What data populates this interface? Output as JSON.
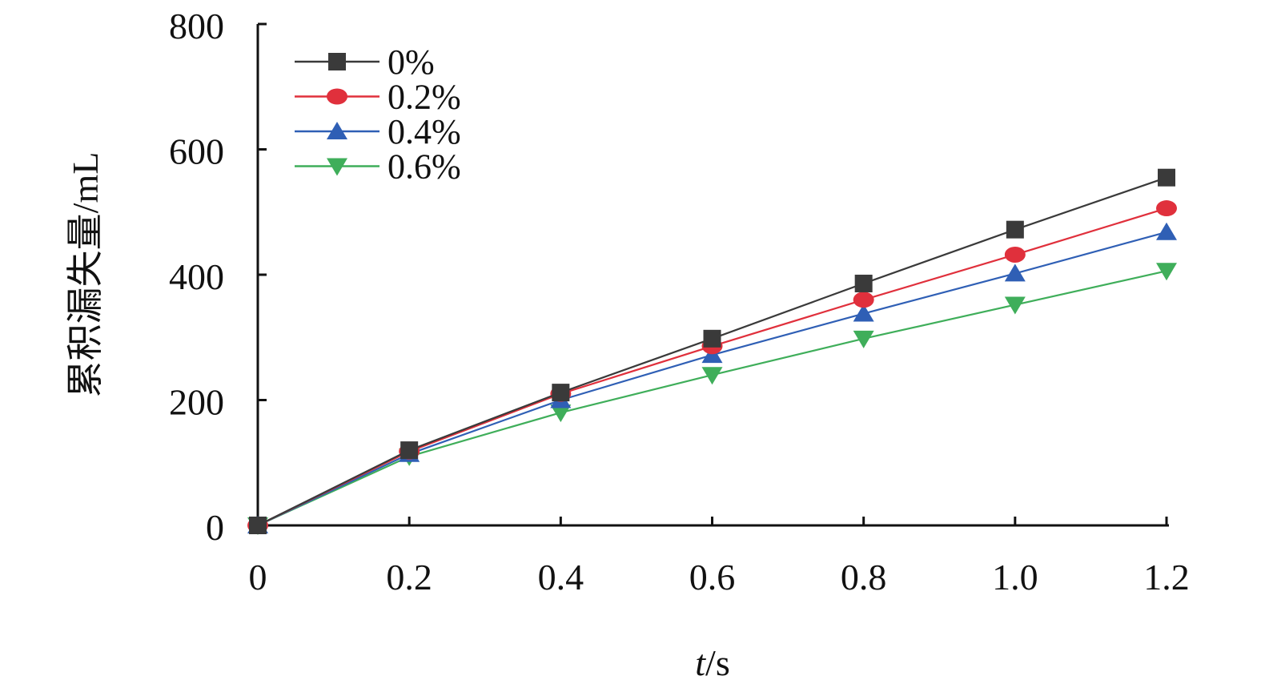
{
  "chart_data": {
    "type": "line",
    "title": "",
    "xlabel": "t/s",
    "xlabel_var": "t",
    "xlabel_unit": "/s",
    "ylabel": "累积漏失量/mL",
    "x": [
      0,
      0.2,
      0.4,
      0.6,
      0.8,
      1.0,
      1.2
    ],
    "x_tick_labels": [
      "0",
      "0.2",
      "0.4",
      "0.6",
      "0.8",
      "1.0",
      "1.2"
    ],
    "y_ticks": [
      0,
      200,
      400,
      600,
      800
    ],
    "xlim": [
      0,
      1.2
    ],
    "ylim": [
      0,
      800
    ],
    "grid": false,
    "legend_position": "top-left",
    "series": [
      {
        "name": "0%",
        "color": "#3a3a3a",
        "marker": "square",
        "values": [
          0,
          120,
          212,
          298,
          386,
          472,
          555
        ]
      },
      {
        "name": "0.2%",
        "color": "#e0303c",
        "marker": "circle",
        "values": [
          0,
          118,
          210,
          286,
          360,
          432,
          506
        ]
      },
      {
        "name": "0.4%",
        "color": "#2f5fb5",
        "marker": "triangle-up",
        "values": [
          0,
          114,
          200,
          272,
          338,
          402,
          468
        ]
      },
      {
        "name": "0.6%",
        "color": "#3fae5a",
        "marker": "triangle-down",
        "values": [
          0,
          110,
          180,
          240,
          298,
          352,
          406
        ]
      }
    ]
  }
}
